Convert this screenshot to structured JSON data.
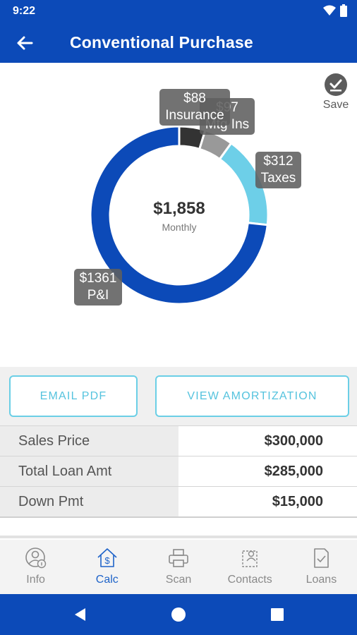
{
  "status_bar": {
    "time": "9:22"
  },
  "app_bar": {
    "title": "Conventional Purchase"
  },
  "save": {
    "label": "Save"
  },
  "chart_data": {
    "type": "pie",
    "title": "",
    "center_amount": "$1,858",
    "center_label": "Monthly",
    "slices": [
      {
        "name": "P&I",
        "label": "$1361",
        "value": 1361,
        "color": "#0c4ab8"
      },
      {
        "name": "Taxes",
        "label": "$312",
        "value": 312,
        "color": "#6dcfe8"
      },
      {
        "name": "Mtg Ins",
        "label": "$97",
        "value": 97,
        "color": "#999999"
      },
      {
        "name": "Insurance",
        "label": "$88",
        "value": 88,
        "color": "#333333"
      }
    ]
  },
  "buttons": {
    "email_pdf": "EMAIL PDF",
    "view_amortization": "VIEW AMORTIZATION"
  },
  "table": {
    "rows": [
      {
        "label": "Sales Price",
        "value": "$300,000"
      },
      {
        "label": "Total Loan Amt",
        "value": "$285,000"
      },
      {
        "label": "Down Pmt",
        "value": "$15,000"
      }
    ]
  },
  "nav": {
    "items": [
      {
        "label": "Info",
        "icon": "person-info-icon"
      },
      {
        "label": "Calc",
        "icon": "house-dollar-icon",
        "active": true
      },
      {
        "label": "Scan",
        "icon": "printer-icon"
      },
      {
        "label": "Contacts",
        "icon": "contacts-icon"
      },
      {
        "label": "Loans",
        "icon": "document-check-icon"
      }
    ]
  }
}
